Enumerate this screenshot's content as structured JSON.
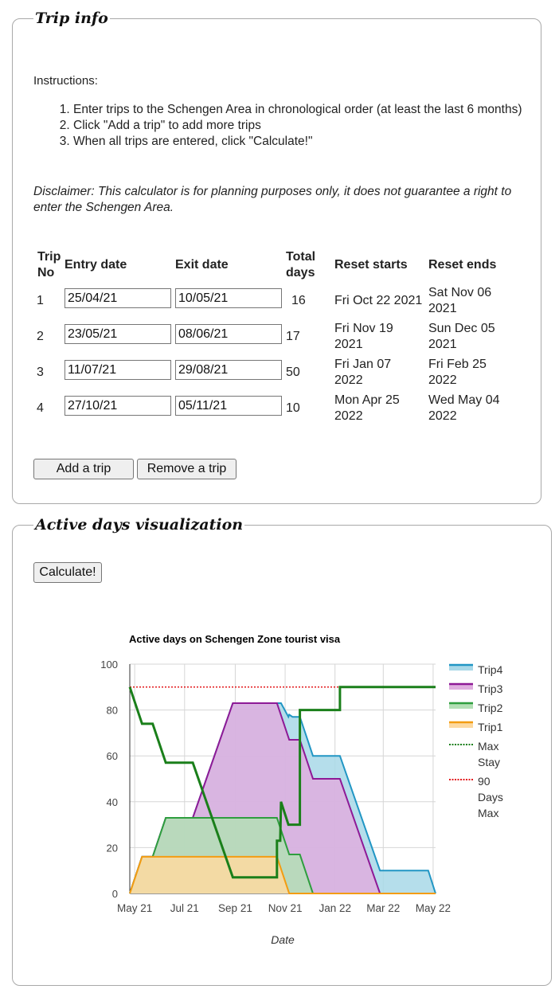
{
  "trip_info": {
    "legend": "Trip info",
    "instructions_label": "Instructions:",
    "instructions": [
      "Enter trips to the Schengen Area in chronological order (at least the last 6 months)",
      "Click \"Add a trip\" to add more trips",
      "When all trips are entered, click \"Calculate!\""
    ],
    "disclaimer": "Disclaimer: This calculator is for planning purposes only, it does not guarantee a right to enter the Schengen Area.",
    "headers": {
      "trip_no_1": "Trip",
      "trip_no_2": "No",
      "entry": "Entry date",
      "exit": "Exit date",
      "total_1": "Total",
      "total_2": "days",
      "reset_starts": "Reset starts",
      "reset_ends": "Reset ends"
    },
    "trips": [
      {
        "no": "1",
        "entry": "25/04/21",
        "exit": "10/05/21",
        "total": "16",
        "reset_start_1": "Fri Oct 22 2021",
        "reset_start_2": "",
        "reset_end_1": "Sat Nov 06",
        "reset_end_2": "2021"
      },
      {
        "no": "2",
        "entry": "23/05/21",
        "exit": "08/06/21",
        "total": "17",
        "reset_start_1": "Fri Nov 19",
        "reset_start_2": "2021",
        "reset_end_1": "Sun Dec 05",
        "reset_end_2": "2021"
      },
      {
        "no": "3",
        "entry": "11/07/21",
        "exit": "29/08/21",
        "total": "50",
        "reset_start_1": "Fri Jan 07",
        "reset_start_2": "2022",
        "reset_end_1": "Fri Feb 25",
        "reset_end_2": "2022"
      },
      {
        "no": "4",
        "entry": "27/10/21",
        "exit": "05/11/21",
        "total": "10",
        "reset_start_1": "Mon Apr 25",
        "reset_start_2": "2022",
        "reset_end_1": "Wed May 04",
        "reset_end_2": "2022"
      }
    ],
    "add_label": "Add a trip",
    "remove_label": "Remove a trip"
  },
  "viz": {
    "legend": "Active days visualization",
    "calculate_label": "Calculate!"
  },
  "chart_data": {
    "type": "area",
    "title": "Active days on Schengen Zone tourist visa",
    "xlabel": "Date",
    "ylabel": "",
    "ylim": [
      0,
      100
    ],
    "yticks": [
      0,
      20,
      40,
      60,
      80,
      100
    ],
    "xlim": [
      "2021-04-25",
      "2022-05-04"
    ],
    "xticks": [
      {
        "date": "2021-05-01",
        "label": "May 21"
      },
      {
        "date": "2021-07-01",
        "label": "Jul 21"
      },
      {
        "date": "2021-09-01",
        "label": "Sep 21"
      },
      {
        "date": "2021-11-01",
        "label": "Nov 21"
      },
      {
        "date": "2022-01-01",
        "label": "Jan 22"
      },
      {
        "date": "2022-03-01",
        "label": "Mar 22"
      },
      {
        "date": "2022-05-01",
        "label": "May 22"
      }
    ],
    "grid": true,
    "legend_position": "right",
    "stacked_series": [
      {
        "name": "Trip1",
        "line": "#f39c12",
        "fill": "#fdd9a0",
        "points": [
          [
            "2021-04-25",
            0
          ],
          [
            "2021-05-10",
            16
          ],
          [
            "2021-10-22",
            16
          ],
          [
            "2021-11-06",
            0
          ],
          [
            "2022-05-04",
            0
          ]
        ]
      },
      {
        "name": "Trip2",
        "line": "#2e9e3e",
        "fill": "#b3dfb5",
        "points": [
          [
            "2021-04-25",
            0
          ],
          [
            "2021-05-10",
            16
          ],
          [
            "2021-05-23",
            16
          ],
          [
            "2021-06-08",
            33
          ],
          [
            "2021-10-22",
            33
          ],
          [
            "2021-11-06",
            17
          ],
          [
            "2021-11-19",
            17
          ],
          [
            "2021-12-05",
            0
          ],
          [
            "2022-05-04",
            0
          ]
        ]
      },
      {
        "name": "Trip3",
        "line": "#8e1a96",
        "fill": "#dfaedf",
        "points": [
          [
            "2021-04-25",
            0
          ],
          [
            "2021-05-10",
            16
          ],
          [
            "2021-05-23",
            16
          ],
          [
            "2021-06-08",
            33
          ],
          [
            "2021-07-11",
            33
          ],
          [
            "2021-08-29",
            83
          ],
          [
            "2021-10-22",
            83
          ],
          [
            "2021-11-06",
            67
          ],
          [
            "2021-11-19",
            67
          ],
          [
            "2021-12-05",
            50
          ],
          [
            "2022-01-07",
            50
          ],
          [
            "2022-02-25",
            0
          ],
          [
            "2022-05-04",
            0
          ]
        ]
      },
      {
        "name": "Trip4",
        "line": "#2196c4",
        "fill": "#a8d8e8",
        "points": [
          [
            "2021-04-25",
            0
          ],
          [
            "2021-05-10",
            16
          ],
          [
            "2021-05-23",
            16
          ],
          [
            "2021-06-08",
            33
          ],
          [
            "2021-07-11",
            33
          ],
          [
            "2021-08-29",
            83
          ],
          [
            "2021-10-22",
            83
          ],
          [
            "2021-10-27",
            83
          ],
          [
            "2021-11-05",
            77
          ],
          [
            "2021-11-06",
            78
          ],
          [
            "2021-11-10",
            77
          ],
          [
            "2021-11-19",
            77
          ],
          [
            "2021-12-05",
            60
          ],
          [
            "2022-01-07",
            60
          ],
          [
            "2022-02-25",
            10
          ],
          [
            "2022-04-25",
            10
          ],
          [
            "2022-05-04",
            0
          ]
        ]
      }
    ],
    "max_stay": {
      "name": "Max Stay",
      "color": "#1a7f1a",
      "points": [
        [
          "2021-04-25",
          90
        ],
        [
          "2021-05-10",
          74
        ],
        [
          "2021-05-23",
          74
        ],
        [
          "2021-06-08",
          57
        ],
        [
          "2021-07-11",
          57
        ],
        [
          "2021-08-29",
          7
        ],
        [
          "2021-10-22",
          7
        ],
        [
          "2021-10-22",
          23
        ],
        [
          "2021-10-26",
          23
        ],
        [
          "2021-10-27",
          40
        ],
        [
          "2021-11-05",
          30
        ],
        [
          "2021-11-19",
          30
        ],
        [
          "2021-11-19",
          80
        ],
        [
          "2022-01-07",
          80
        ],
        [
          "2022-01-07",
          90
        ],
        [
          "2022-05-04",
          90
        ]
      ]
    },
    "limit": {
      "name": "90 Days Max",
      "color": "#e31a1c",
      "value": 90
    }
  }
}
